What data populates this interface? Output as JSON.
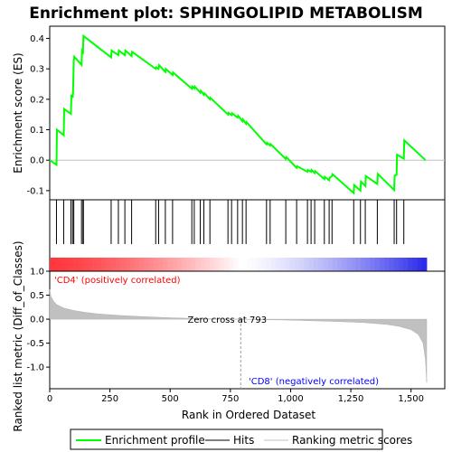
{
  "chart_data": {
    "type": "line",
    "title": "Enrichment plot: SPHINGOLIPID METABOLISM",
    "top_panel": {
      "ylabel": "Enrichment score (ES)",
      "ylim": [
        -0.13,
        0.44
      ],
      "yticks": [
        "0.4",
        "0.3",
        "0.2",
        "0.1",
        "0.0",
        "-0.1"
      ],
      "ytick_values": [
        0.4,
        0.3,
        0.2,
        0.1,
        0.0,
        -0.1
      ],
      "series": [
        {
          "name": "Enrichment profile",
          "color": "#00ff00",
          "x": [
            0,
            28,
            30,
            58,
            60,
            88,
            90,
            95,
            97,
            100,
            102,
            132,
            134,
            138,
            140,
            255,
            257,
            285,
            287,
            312,
            314,
            340,
            342,
            440,
            442,
            452,
            454,
            480,
            482,
            510,
            512,
            590,
            592,
            600,
            602,
            625,
            627,
            640,
            642,
            665,
            667,
            740,
            742,
            755,
            757,
            780,
            782,
            800,
            802,
            815,
            817,
            900,
            902,
            915,
            917,
            980,
            982,
            1025,
            1027,
            1070,
            1072,
            1085,
            1087,
            1100,
            1102,
            1140,
            1142,
            1160,
            1162,
            1172,
            1174,
            1262,
            1264,
            1290,
            1292,
            1310,
            1312,
            1360,
            1362,
            1430,
            1432,
            1440,
            1442,
            1470,
            1472,
            1560
          ],
          "y": [
            0.0,
            -0.015,
            0.1,
            0.082,
            0.168,
            0.152,
            0.215,
            0.205,
            0.22,
            0.325,
            0.34,
            0.313,
            0.36,
            0.355,
            0.408,
            0.338,
            0.36,
            0.345,
            0.36,
            0.345,
            0.36,
            0.342,
            0.356,
            0.3,
            0.305,
            0.3,
            0.312,
            0.29,
            0.3,
            0.28,
            0.288,
            0.235,
            0.242,
            0.236,
            0.242,
            0.222,
            0.228,
            0.215,
            0.22,
            0.2,
            0.205,
            0.15,
            0.156,
            0.148,
            0.154,
            0.14,
            0.146,
            0.128,
            0.134,
            0.12,
            0.125,
            0.052,
            0.057,
            0.048,
            0.053,
            0.004,
            0.01,
            -0.025,
            -0.02,
            -0.038,
            -0.032,
            -0.038,
            -0.032,
            -0.042,
            -0.036,
            -0.062,
            -0.055,
            -0.066,
            -0.058,
            -0.052,
            -0.046,
            -0.108,
            -0.082,
            -0.1,
            -0.07,
            -0.085,
            -0.052,
            -0.078,
            -0.045,
            -0.098,
            -0.05,
            -0.048,
            0.018,
            0.005,
            0.065,
            0.0
          ]
        }
      ]
    },
    "hits_panel": {
      "series_name": "Hits",
      "hit_positions": [
        28,
        58,
        88,
        95,
        100,
        132,
        138,
        140,
        255,
        285,
        312,
        340,
        440,
        452,
        480,
        510,
        590,
        600,
        625,
        640,
        665,
        740,
        755,
        780,
        800,
        815,
        900,
        915,
        980,
        1025,
        1070,
        1085,
        1100,
        1140,
        1160,
        1172,
        1262,
        1290,
        1310,
        1360,
        1430,
        1440,
        1470
      ]
    },
    "bottom_panel": {
      "ylabel": "Ranked list metric (Diff_of_Classes)",
      "xlabel": "Rank in Ordered Dataset",
      "ylim": [
        -1.45,
        1.0
      ],
      "yticks": [
        "1.0",
        "0.5",
        "0.0",
        "-0.5",
        "-1.0"
      ],
      "ytick_values": [
        1.0,
        0.5,
        0.0,
        -0.5,
        -1.0
      ],
      "xlim": [
        0,
        1640
      ],
      "xticks": [
        "0",
        "250",
        "500",
        "750",
        "1,000",
        "1,250",
        "1,500"
      ],
      "xtick_values": [
        0,
        250,
        500,
        750,
        1000,
        1250,
        1500
      ],
      "series_name": "Ranking metric scores",
      "metric_points": {
        "x": [
          0,
          5,
          15,
          30,
          60,
          100,
          150,
          200,
          300,
          400,
          500,
          600,
          700,
          793,
          900,
          1000,
          1100,
          1200,
          1300,
          1400,
          1450,
          1500,
          1530,
          1550,
          1560,
          1565
        ],
        "y": [
          0.62,
          0.48,
          0.38,
          0.3,
          0.23,
          0.18,
          0.14,
          0.11,
          0.075,
          0.05,
          0.03,
          0.015,
          0.005,
          0.0,
          -0.01,
          -0.02,
          -0.035,
          -0.05,
          -0.07,
          -0.11,
          -0.15,
          -0.22,
          -0.32,
          -0.5,
          -0.85,
          -1.32
        ]
      },
      "zero_cross_label": "Zero cross at 793",
      "zero_cross": 793,
      "positive_label": "'CD4' (positively correlated)",
      "negative_label": "'CD8' (negatively correlated)"
    },
    "legend": {
      "placement": "bottom",
      "items": [
        "Enrichment profile",
        "Hits",
        "Ranking metric scores"
      ]
    },
    "total_genes": 1565
  },
  "colors": {
    "profile": "#00ff00",
    "hits": "#000000",
    "metric": "#c0c0c0",
    "positive_text": "#ff0000",
    "negative_text": "#0000ff"
  }
}
